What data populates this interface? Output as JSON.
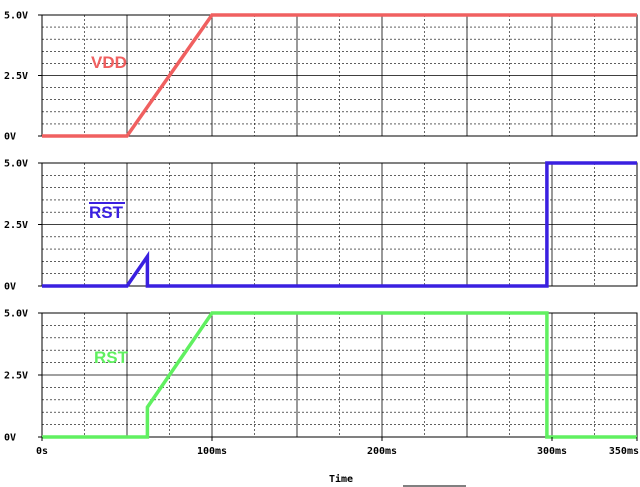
{
  "chart_data": {
    "type": "line",
    "xlabel": "Time",
    "x_unit": "ms",
    "xlim": [
      0,
      350
    ],
    "x_ticks": [
      {
        "value": 0,
        "label": "0s"
      },
      {
        "value": 100,
        "label": "100ms"
      },
      {
        "value": 200,
        "label": "200ms"
      },
      {
        "value": 300,
        "label": "300ms"
      },
      {
        "value": 350,
        "label": "350ms"
      }
    ],
    "grid": true,
    "panels": [
      {
        "name": "VDD",
        "label": "VDD",
        "overline": false,
        "color": "#f06060",
        "ylim": [
          0,
          5
        ],
        "y_ticks": [
          {
            "value": 0,
            "label": "0V"
          },
          {
            "value": 2.5,
            "label": "2.5V"
          },
          {
            "value": 5,
            "label": "5.0V"
          }
        ],
        "x": [
          0,
          50,
          100,
          350
        ],
        "y": [
          0,
          0,
          5,
          5
        ]
      },
      {
        "name": "RST-bar",
        "label": "RST",
        "overline": true,
        "color": "#3a20e0",
        "ylim": [
          0,
          5
        ],
        "y_ticks": [
          {
            "value": 0,
            "label": "0V"
          },
          {
            "value": 2.5,
            "label": "2.5V"
          },
          {
            "value": 5,
            "label": "5.0V"
          }
        ],
        "x": [
          0,
          50,
          62,
          62,
          297,
          297,
          350
        ],
        "y": [
          0,
          0,
          1.2,
          0,
          0,
          5,
          5
        ]
      },
      {
        "name": "RST",
        "label": "RST",
        "overline": false,
        "color": "#60f060",
        "ylim": [
          0,
          5
        ],
        "y_ticks": [
          {
            "value": 0,
            "label": "0V"
          },
          {
            "value": 2.5,
            "label": "2.5V"
          },
          {
            "value": 5,
            "label": "5.0V"
          }
        ],
        "x": [
          0,
          62,
          62,
          100,
          297,
          297,
          350
        ],
        "y": [
          0,
          0,
          1.2,
          5,
          5,
          0,
          0
        ]
      }
    ]
  }
}
